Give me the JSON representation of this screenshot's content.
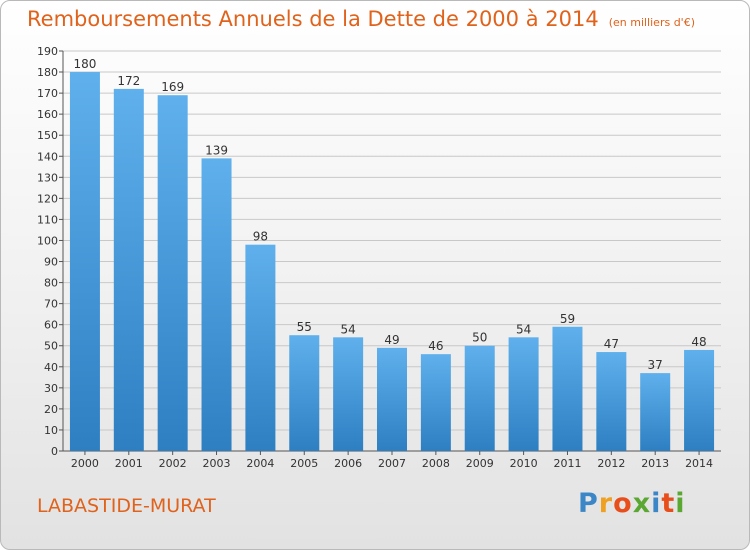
{
  "header": {
    "title": "Remboursements Annuels de la Dette de 2000 à 2014",
    "unit": "(en milliers d'€)"
  },
  "footer": {
    "commune": "LABASTIDE-MURAT",
    "logo": [
      "P",
      "r",
      "o",
      "x",
      "i",
      "t",
      "i"
    ]
  },
  "colors": {
    "title": "#e0621b",
    "bar_top": "#5fb0ec",
    "bar_bottom": "#2d7fc2",
    "grid": "#c8c8c8",
    "logo": [
      "#3b86c6",
      "#f0a020",
      "#e84e1b",
      "#5aa832",
      "#3b86c6",
      "#e84e1b",
      "#5aa832"
    ]
  },
  "chart_data": {
    "type": "bar",
    "title": "Remboursements Annuels de la Dette de 2000 à 2014",
    "subtitle": "(en milliers d'€)",
    "categories": [
      "2000",
      "2001",
      "2002",
      "2003",
      "2004",
      "2005",
      "2006",
      "2007",
      "2008",
      "2009",
      "2010",
      "2011",
      "2012",
      "2013",
      "2014"
    ],
    "values": [
      180,
      172,
      169,
      139,
      98,
      55,
      54,
      49,
      46,
      50,
      54,
      59,
      47,
      37,
      48
    ],
    "ylim": [
      0,
      190
    ],
    "yticks": [
      0,
      10,
      20,
      30,
      40,
      50,
      60,
      70,
      80,
      90,
      100,
      110,
      120,
      130,
      140,
      150,
      160,
      170,
      180,
      190
    ],
    "grid": true,
    "legend": "none"
  }
}
